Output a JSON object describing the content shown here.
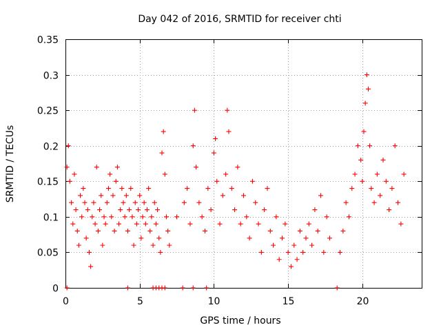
{
  "chart_data": {
    "type": "scatter",
    "title": "Day 042 of 2016, SRMTID for receiver chti",
    "xlabel": "GPS time / hours",
    "ylabel": "SRMTID / TECUs",
    "xlim": [
      0,
      24
    ],
    "ylim": [
      0,
      0.35
    ],
    "xticks": [
      0,
      5,
      10,
      15,
      20
    ],
    "xtick_labels": [
      "0",
      "5",
      "10",
      "15",
      "20"
    ],
    "yticks": [
      0,
      0.05,
      0.1,
      0.15,
      0.2,
      0.25,
      0.3,
      0.35
    ],
    "ytick_labels": [
      "0",
      "0.05",
      "0.1",
      "0.15",
      "0.2",
      "0.25",
      "0.3",
      "0.35"
    ],
    "grid": true,
    "marker": "+",
    "color": "#ff0000",
    "zero_points_x": [
      0.1,
      4.2,
      5.9,
      6.1,
      6.3,
      6.5,
      6.7,
      7.9,
      8.6,
      9.5,
      18.3
    ],
    "series": [
      {
        "name": "SRMTID",
        "x": [
          0.1,
          0.2,
          0.3,
          0.4,
          0.5,
          0.6,
          0.7,
          0.8,
          0.9,
          1.0,
          1.1,
          1.2,
          1.3,
          1.4,
          1.5,
          1.6,
          1.7,
          1.8,
          1.9,
          2.0,
          2.1,
          2.2,
          2.3,
          2.4,
          2.5,
          2.6,
          2.7,
          2.8,
          2.9,
          3.0,
          3.1,
          3.2,
          3.3,
          3.4,
          3.5,
          3.6,
          3.7,
          3.8,
          3.9,
          4.0,
          4.1,
          4.2,
          4.3,
          4.4,
          4.5,
          4.6,
          4.7,
          4.8,
          4.9,
          5.0,
          5.1,
          5.2,
          5.3,
          5.4,
          5.5,
          5.6,
          5.7,
          5.8,
          5.9,
          6.0,
          6.1,
          6.2,
          6.3,
          6.4,
          6.5,
          6.6,
          6.7,
          6.8,
          6.9,
          7.0,
          7.5,
          8.0,
          8.2,
          8.4,
          8.6,
          8.7,
          8.8,
          9.0,
          9.2,
          9.4,
          9.6,
          9.8,
          10.0,
          10.1,
          10.2,
          10.4,
          10.6,
          10.8,
          10.9,
          11.0,
          11.2,
          11.4,
          11.6,
          11.8,
          12.0,
          12.2,
          12.4,
          12.6,
          12.8,
          13.0,
          13.2,
          13.4,
          13.6,
          13.8,
          14.0,
          14.2,
          14.4,
          14.6,
          14.8,
          15.0,
          15.2,
          15.4,
          15.6,
          15.8,
          16.0,
          16.2,
          16.4,
          16.6,
          16.8,
          17.0,
          17.2,
          17.4,
          17.6,
          17.8,
          18.5,
          18.7,
          18.9,
          19.1,
          19.3,
          19.5,
          19.7,
          19.9,
          20.0,
          20.1,
          20.2,
          20.3,
          20.4,
          20.5,
          20.6,
          20.8,
          21.0,
          21.2,
          21.4,
          21.6,
          21.8,
          22.0,
          22.2,
          22.4,
          22.6,
          22.8
        ],
        "y": [
          0.17,
          0.2,
          0.15,
          0.12,
          0.09,
          0.16,
          0.11,
          0.08,
          0.06,
          0.13,
          0.1,
          0.14,
          0.12,
          0.07,
          0.11,
          0.05,
          0.03,
          0.1,
          0.12,
          0.09,
          0.17,
          0.08,
          0.11,
          0.13,
          0.06,
          0.1,
          0.09,
          0.12,
          0.14,
          0.16,
          0.1,
          0.13,
          0.08,
          0.15,
          0.17,
          0.09,
          0.11,
          0.14,
          0.12,
          0.1,
          0.13,
          0.08,
          0.11,
          0.14,
          0.1,
          0.06,
          0.12,
          0.09,
          0.11,
          0.13,
          0.07,
          0.1,
          0.12,
          0.09,
          0.11,
          0.14,
          0.08,
          0.1,
          0.06,
          0.12,
          0.09,
          0.11,
          0.07,
          0.05,
          0.19,
          0.22,
          0.16,
          0.1,
          0.08,
          0.06,
          0.1,
          0.12,
          0.14,
          0.09,
          0.2,
          0.25,
          0.17,
          0.12,
          0.1,
          0.08,
          0.14,
          0.11,
          0.19,
          0.21,
          0.15,
          0.09,
          0.13,
          0.16,
          0.25,
          0.22,
          0.14,
          0.11,
          0.17,
          0.09,
          0.13,
          0.1,
          0.07,
          0.15,
          0.12,
          0.09,
          0.05,
          0.11,
          0.14,
          0.08,
          0.06,
          0.1,
          0.04,
          0.07,
          0.09,
          0.05,
          0.03,
          0.06,
          0.04,
          0.08,
          0.05,
          0.07,
          0.09,
          0.06,
          0.11,
          0.08,
          0.13,
          0.05,
          0.1,
          0.07,
          0.05,
          0.08,
          0.12,
          0.1,
          0.14,
          0.16,
          0.2,
          0.18,
          0.15,
          0.22,
          0.26,
          0.3,
          0.28,
          0.2,
          0.14,
          0.12,
          0.16,
          0.13,
          0.18,
          0.15,
          0.11,
          0.14,
          0.2,
          0.12,
          0.09,
          0.16
        ]
      }
    ]
  }
}
